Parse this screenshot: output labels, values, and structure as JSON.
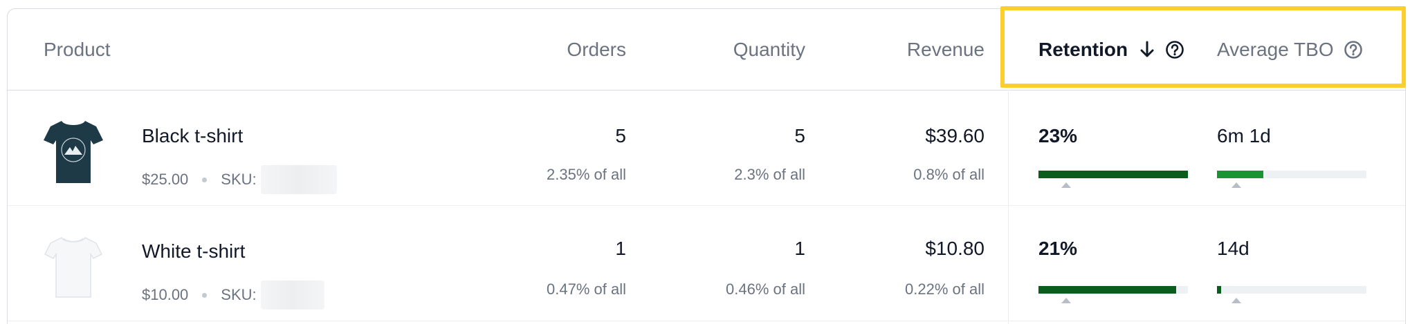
{
  "columns": {
    "product": "Product",
    "orders": "Orders",
    "quantity": "Quantity",
    "revenue": "Revenue",
    "retention": "Retention",
    "average_tbo": "Average TBO"
  },
  "icons": {
    "sort": "arrow-down-icon",
    "help": "question-circle-icon"
  },
  "colors": {
    "highlight": "#fbcf2e",
    "retention_bar": "#0b5d1e",
    "tbo_bar_row1": "#1a9432",
    "tbo_bar_row2": "#0b5d1e",
    "track": "#eef1f4"
  },
  "rows": [
    {
      "name": "Black t-shirt",
      "price": "$25.00",
      "sku_label": "SKU:",
      "orders": "5",
      "orders_share": "2.35% of all",
      "quantity": "5",
      "quantity_share": "2.3% of all",
      "revenue": "$39.60",
      "revenue_share": "0.8% of all",
      "retention": "23%",
      "retention_fill": 1.0,
      "average_tbo": "6m 1d",
      "tbo_fill": 0.31
    },
    {
      "name": "White t-shirt",
      "price": "$10.00",
      "sku_label": "SKU:",
      "orders": "1",
      "orders_share": "0.47% of all",
      "quantity": "1",
      "quantity_share": "0.46% of all",
      "revenue": "$10.80",
      "revenue_share": "0.22% of all",
      "retention": "21%",
      "retention_fill": 0.92,
      "average_tbo": "14d",
      "tbo_fill": 0.03
    }
  ]
}
